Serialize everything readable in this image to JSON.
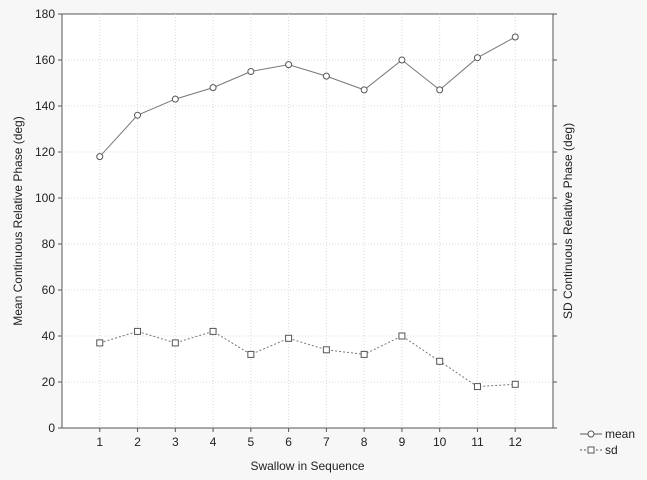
{
  "chart_data": {
    "type": "line",
    "xlabel": "Swallow in Sequence",
    "ylabel_left": "Mean Continuous Relative Phase (deg)",
    "ylabel_right": "SD Continuous Relative Phase (deg)",
    "x": [
      1,
      2,
      3,
      4,
      5,
      6,
      7,
      8,
      9,
      10,
      11,
      12
    ],
    "xlim": [
      0,
      13
    ],
    "ylim": [
      0,
      180
    ],
    "yticks": [
      0,
      20,
      40,
      60,
      80,
      100,
      120,
      140,
      160,
      180
    ],
    "grid": true,
    "legend_position": "bottom-right",
    "series": [
      {
        "name": "mean",
        "marker": "circle",
        "line_style": "solid",
        "values": [
          118,
          136,
          143,
          148,
          155,
          158,
          153,
          147,
          160,
          147,
          161,
          170
        ]
      },
      {
        "name": "sd",
        "marker": "square",
        "line_style": "dotted",
        "values": [
          37,
          42,
          37,
          42,
          32,
          39,
          34,
          32,
          40,
          29,
          18,
          19
        ]
      }
    ]
  }
}
